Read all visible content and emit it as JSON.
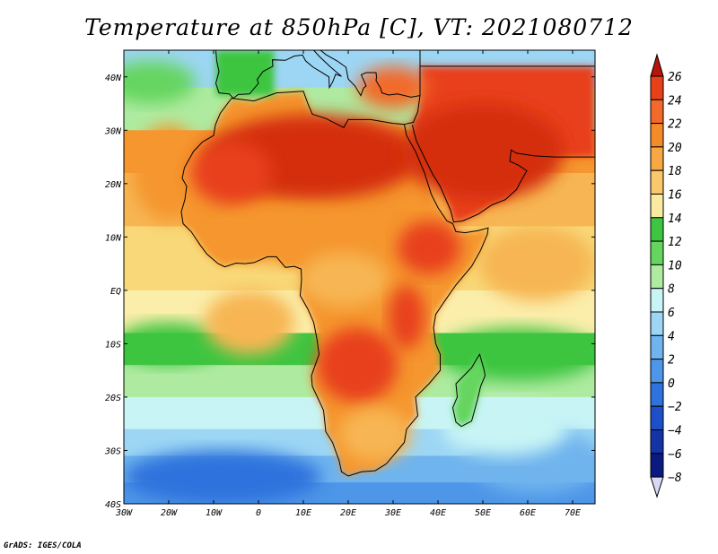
{
  "title": "Temperature at 850hPa [C], VT: 2021080712",
  "credit": "GrADS: IGES/COLA",
  "map": {
    "lon_range": [
      -30,
      75
    ],
    "lat_range": [
      -40,
      45
    ],
    "y_ticks": [
      {
        "lat": 40,
        "label": "40N"
      },
      {
        "lat": 30,
        "label": "30N"
      },
      {
        "lat": 20,
        "label": "20N"
      },
      {
        "lat": 10,
        "label": "10N"
      },
      {
        "lat": 0,
        "label": "EQ"
      },
      {
        "lat": -10,
        "label": "10S"
      },
      {
        "lat": -20,
        "label": "20S"
      },
      {
        "lat": -30,
        "label": "30S"
      },
      {
        "lat": -40,
        "label": "40S"
      }
    ],
    "x_ticks": [
      {
        "lon": -30,
        "label": "30W"
      },
      {
        "lon": -20,
        "label": "20W"
      },
      {
        "lon": -10,
        "label": "10W"
      },
      {
        "lon": 0,
        "label": "0"
      },
      {
        "lon": 10,
        "label": "10E"
      },
      {
        "lon": 20,
        "label": "20E"
      },
      {
        "lon": 30,
        "label": "30E"
      },
      {
        "lon": 40,
        "label": "40E"
      },
      {
        "lon": 50,
        "label": "50E"
      },
      {
        "lon": 60,
        "label": "60E"
      },
      {
        "lon": 70,
        "label": "70E"
      }
    ],
    "africa_outline": [
      [
        -6,
        36
      ],
      [
        -1,
        35.5
      ],
      [
        4,
        37
      ],
      [
        10,
        37.3
      ],
      [
        11,
        35
      ],
      [
        12,
        33
      ],
      [
        15,
        32.2
      ],
      [
        19,
        30.5
      ],
      [
        20,
        32
      ],
      [
        25,
        32
      ],
      [
        30,
        31.3
      ],
      [
        32.5,
        31.1
      ],
      [
        33,
        29
      ],
      [
        35,
        26
      ],
      [
        37,
        22
      ],
      [
        38.5,
        18
      ],
      [
        40,
        15.5
      ],
      [
        42,
        13
      ],
      [
        43.3,
        12.5
      ],
      [
        44,
        11
      ],
      [
        46,
        10.8
      ],
      [
        49,
        11.2
      ],
      [
        51.2,
        11.7
      ],
      [
        51,
        10.5
      ],
      [
        49.5,
        7.5
      ],
      [
        47.5,
        4.5
      ],
      [
        44,
        1
      ],
      [
        41.5,
        -2
      ],
      [
        39.5,
        -4.5
      ],
      [
        39,
        -7
      ],
      [
        39.5,
        -10
      ],
      [
        40.5,
        -12
      ],
      [
        40.5,
        -15
      ],
      [
        38,
        -17.5
      ],
      [
        35,
        -20
      ],
      [
        35.5,
        -23.5
      ],
      [
        33,
        -26
      ],
      [
        32.5,
        -28.5
      ],
      [
        31,
        -30
      ],
      [
        28.5,
        -32.5
      ],
      [
        26,
        -33.8
      ],
      [
        23,
        -34
      ],
      [
        20,
        -34.8
      ],
      [
        18.5,
        -34
      ],
      [
        18,
        -32
      ],
      [
        16.5,
        -28.5
      ],
      [
        15,
        -26.5
      ],
      [
        14.5,
        -22.5
      ],
      [
        12,
        -18
      ],
      [
        11.8,
        -16
      ],
      [
        13.5,
        -12
      ],
      [
        13,
        -9
      ],
      [
        12.3,
        -6
      ],
      [
        11,
        -3.5
      ],
      [
        9.3,
        -1
      ],
      [
        9.6,
        2
      ],
      [
        9.5,
        4
      ],
      [
        8,
        4.5
      ],
      [
        6,
        4.3
      ],
      [
        4,
        6.3
      ],
      [
        2,
        6.3
      ],
      [
        -1,
        5.2
      ],
      [
        -3,
        5
      ],
      [
        -5,
        5.1
      ],
      [
        -7.5,
        4.4
      ],
      [
        -9,
        5
      ],
      [
        -11.5,
        6.8
      ],
      [
        -13,
        8.5
      ],
      [
        -15,
        11
      ],
      [
        -16.8,
        12.5
      ],
      [
        -17.2,
        14.7
      ],
      [
        -16.4,
        17
      ],
      [
        -16,
        19.5
      ],
      [
        -17,
        21
      ],
      [
        -16.5,
        23
      ],
      [
        -14.5,
        26
      ],
      [
        -12.5,
        27.8
      ],
      [
        -10,
        29
      ],
      [
        -9.6,
        31
      ],
      [
        -8.5,
        33.2
      ],
      [
        -6,
        36
      ]
    ],
    "madagascar_outline": [
      [
        49.3,
        -12
      ],
      [
        50.3,
        -15
      ],
      [
        50.5,
        -16
      ],
      [
        49.5,
        -18
      ],
      [
        48.8,
        -20.5
      ],
      [
        47.5,
        -24.5
      ],
      [
        45.2,
        -25.5
      ],
      [
        44,
        -24.7
      ],
      [
        43.3,
        -22
      ],
      [
        44.3,
        -20
      ],
      [
        44,
        -17.5
      ],
      [
        46,
        -15.8
      ],
      [
        47.5,
        -14.5
      ],
      [
        48.8,
        -12.6
      ],
      [
        49.3,
        -12
      ]
    ],
    "arabia_outline": [
      [
        32.5,
        31.1
      ],
      [
        34.5,
        31.5
      ],
      [
        35.5,
        33.5
      ],
      [
        36,
        36.5
      ],
      [
        36,
        42
      ],
      [
        75,
        42
      ],
      [
        75,
        25
      ],
      [
        66,
        25
      ],
      [
        61.5,
        25.2
      ],
      [
        57.5,
        25.7
      ],
      [
        56.3,
        26.3
      ],
      [
        56,
        24.2
      ],
      [
        57.8,
        23.5
      ],
      [
        59.8,
        22.4
      ],
      [
        58.5,
        20.5
      ],
      [
        57.5,
        18.9
      ],
      [
        55,
        17
      ],
      [
        52,
        16
      ],
      [
        49,
        14.3
      ],
      [
        45.5,
        13
      ],
      [
        43.5,
        12.8
      ],
      [
        42.8,
        15
      ],
      [
        40.5,
        19.5
      ],
      [
        38.8,
        21.8
      ],
      [
        37.2,
        24.5
      ],
      [
        35.2,
        28
      ],
      [
        34.7,
        29.5
      ],
      [
        34.3,
        31
      ]
    ],
    "europe_outline": [
      [
        -9.5,
        45
      ],
      [
        -9.3,
        43
      ],
      [
        -8.8,
        41
      ],
      [
        -9.5,
        38.8
      ],
      [
        -8.8,
        37
      ],
      [
        -6.5,
        36.8
      ],
      [
        -5.6,
        36
      ],
      [
        -4.5,
        36.7
      ],
      [
        -2,
        36.8
      ],
      [
        0,
        38.8
      ],
      [
        -0.3,
        39.5
      ],
      [
        1,
        41
      ],
      [
        3.2,
        42
      ],
      [
        3.1,
        43.2
      ],
      [
        6,
        43.1
      ],
      [
        8,
        43.9
      ],
      [
        9.8,
        44.1
      ],
      [
        10.5,
        43
      ],
      [
        12.2,
        41.8
      ],
      [
        14,
        40.9
      ],
      [
        15.7,
        40
      ],
      [
        15.8,
        38
      ],
      [
        16.5,
        39
      ],
      [
        17.2,
        40.5
      ],
      [
        18.5,
        40.1
      ],
      [
        16,
        41.9
      ],
      [
        13.6,
        43.8
      ],
      [
        12.3,
        45
      ],
      [
        13.8,
        45
      ],
      [
        15,
        44.2
      ],
      [
        17.5,
        43
      ],
      [
        19.5,
        41.8
      ],
      [
        20,
        39.6
      ],
      [
        21.5,
        38.3
      ],
      [
        22.8,
        36.5
      ],
      [
        23.4,
        37.9
      ],
      [
        24,
        38.3
      ],
      [
        22.9,
        40.4
      ],
      [
        24,
        40.8
      ],
      [
        26.2,
        40.8
      ],
      [
        26.3,
        40
      ],
      [
        26.2,
        39.3
      ],
      [
        27.2,
        37.9
      ],
      [
        27.5,
        37
      ],
      [
        29,
        36.6
      ],
      [
        31,
        36.8
      ],
      [
        34,
        36.2
      ],
      [
        36,
        36.5
      ],
      [
        36,
        45
      ]
    ],
    "iberia_fill": [
      [
        -9.5,
        45
      ],
      [
        -9.5,
        36.5
      ],
      [
        3.5,
        36.5
      ],
      [
        3.5,
        45
      ]
    ],
    "colors": {
      "land_outline": "#000000",
      "zone_colors": {
        "deep_red": "#d42e0a",
        "red": "#e8411a",
        "orange_red": "#f26a2a",
        "orange": "#f5962f",
        "light_orange": "#f7b653",
        "yellow": "#f8d878",
        "pale_yellow": "#fbeeab",
        "light_green": "#aeeba0",
        "green": "#65d55f",
        "dark_green": "#3ec541",
        "pale_cyan": "#c8f4f5",
        "light_blue": "#9cd6f4",
        "blue": "#6fb4ee",
        "mid_blue": "#4d96e8",
        "dark_blue": "#2f72dd",
        "deep_blue": "#1d50c8"
      }
    }
  },
  "colorbar": {
    "labels": [
      "26",
      "24",
      "22",
      "20",
      "18",
      "16",
      "14",
      "12",
      "10",
      "8",
      "6",
      "4",
      "2",
      "0",
      "−2",
      "−4",
      "−6",
      "−8"
    ],
    "colors": [
      "#c01c06",
      "#e8411a",
      "#f26a2a",
      "#f58a28",
      "#f7a843",
      "#f8c86a",
      "#faeaa0",
      "#3ec541",
      "#65d55f",
      "#aeeba0",
      "#c8f4f5",
      "#9cd6f4",
      "#6fb4ee",
      "#4d96e8",
      "#2f72dd",
      "#1d50c8",
      "#1434a6",
      "#0a1a80"
    ],
    "top_arrow_color": "#b5150a",
    "bottom_arrow_color": "#d8d8f5"
  }
}
